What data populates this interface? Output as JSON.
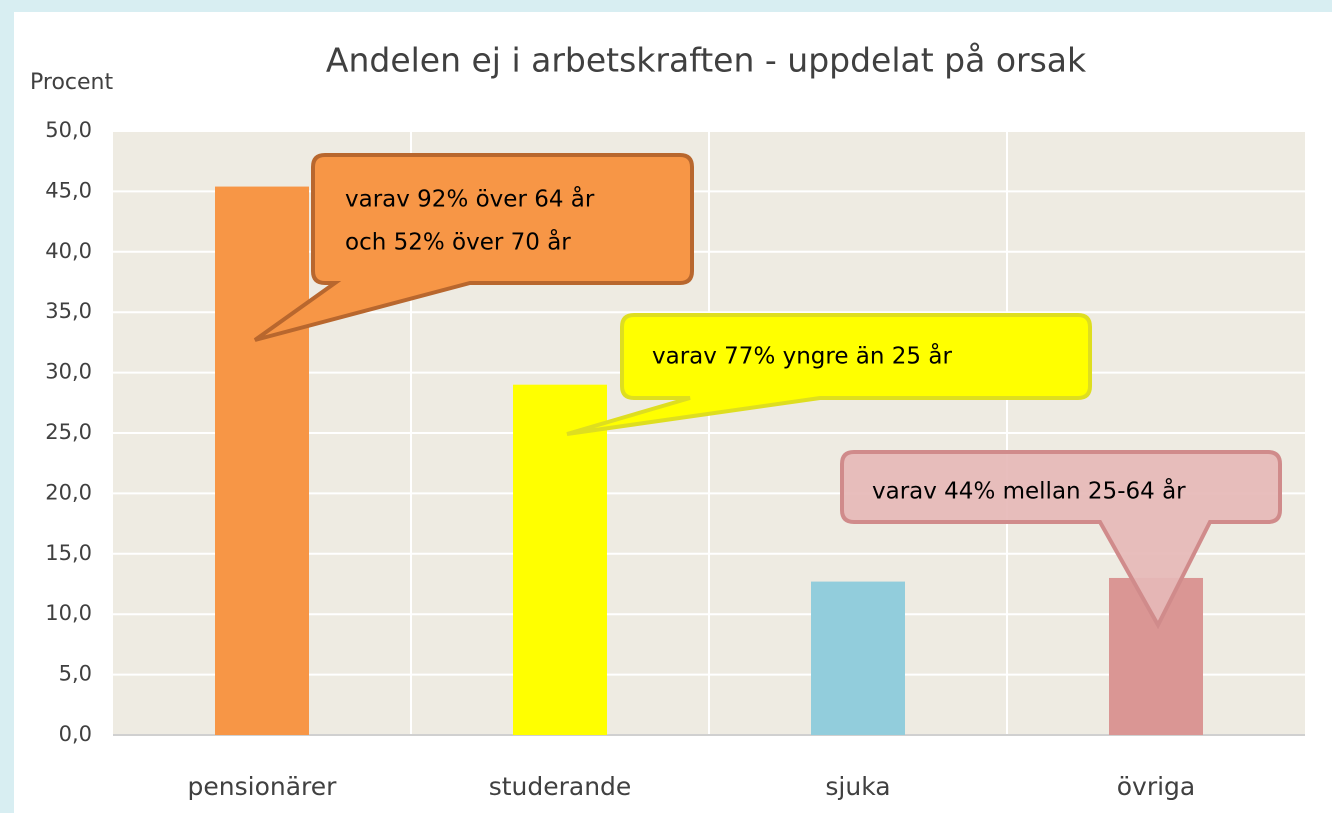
{
  "chart_data": {
    "type": "bar",
    "title": "Andelen ej i arbetskraften - uppdelat på orsak",
    "y_axis_label": "Procent",
    "categories": [
      "pensionärer",
      "studerande",
      "sjuka",
      "övriga"
    ],
    "values": [
      45.4,
      29.0,
      12.7,
      13.0
    ],
    "colors": [
      "#f79646",
      "#ffff00",
      "#92cddc",
      "#da9694"
    ],
    "ylim": [
      0,
      50
    ],
    "yticks": [
      {
        "value": 0,
        "label": "0,0"
      },
      {
        "value": 5,
        "label": "5,0"
      },
      {
        "value": 10,
        "label": "10,0"
      },
      {
        "value": 15,
        "label": "15,0"
      },
      {
        "value": 20,
        "label": "20,0"
      },
      {
        "value": 25,
        "label": "25,0"
      },
      {
        "value": 30,
        "label": "30,0"
      },
      {
        "value": 35,
        "label": "35,0"
      },
      {
        "value": 40,
        "label": "40,0"
      },
      {
        "value": 45,
        "label": "45,0"
      },
      {
        "value": 50,
        "label": "50,0"
      }
    ],
    "grid": true,
    "annotations": [
      {
        "lines": [
          "varav 92% över 64 år",
          "och 52% över 70 år"
        ]
      },
      {
        "lines": [
          "varav 77% yngre än 25 år"
        ]
      },
      {
        "lines": [
          "varav 44% mellan 25-64 år"
        ]
      }
    ]
  }
}
